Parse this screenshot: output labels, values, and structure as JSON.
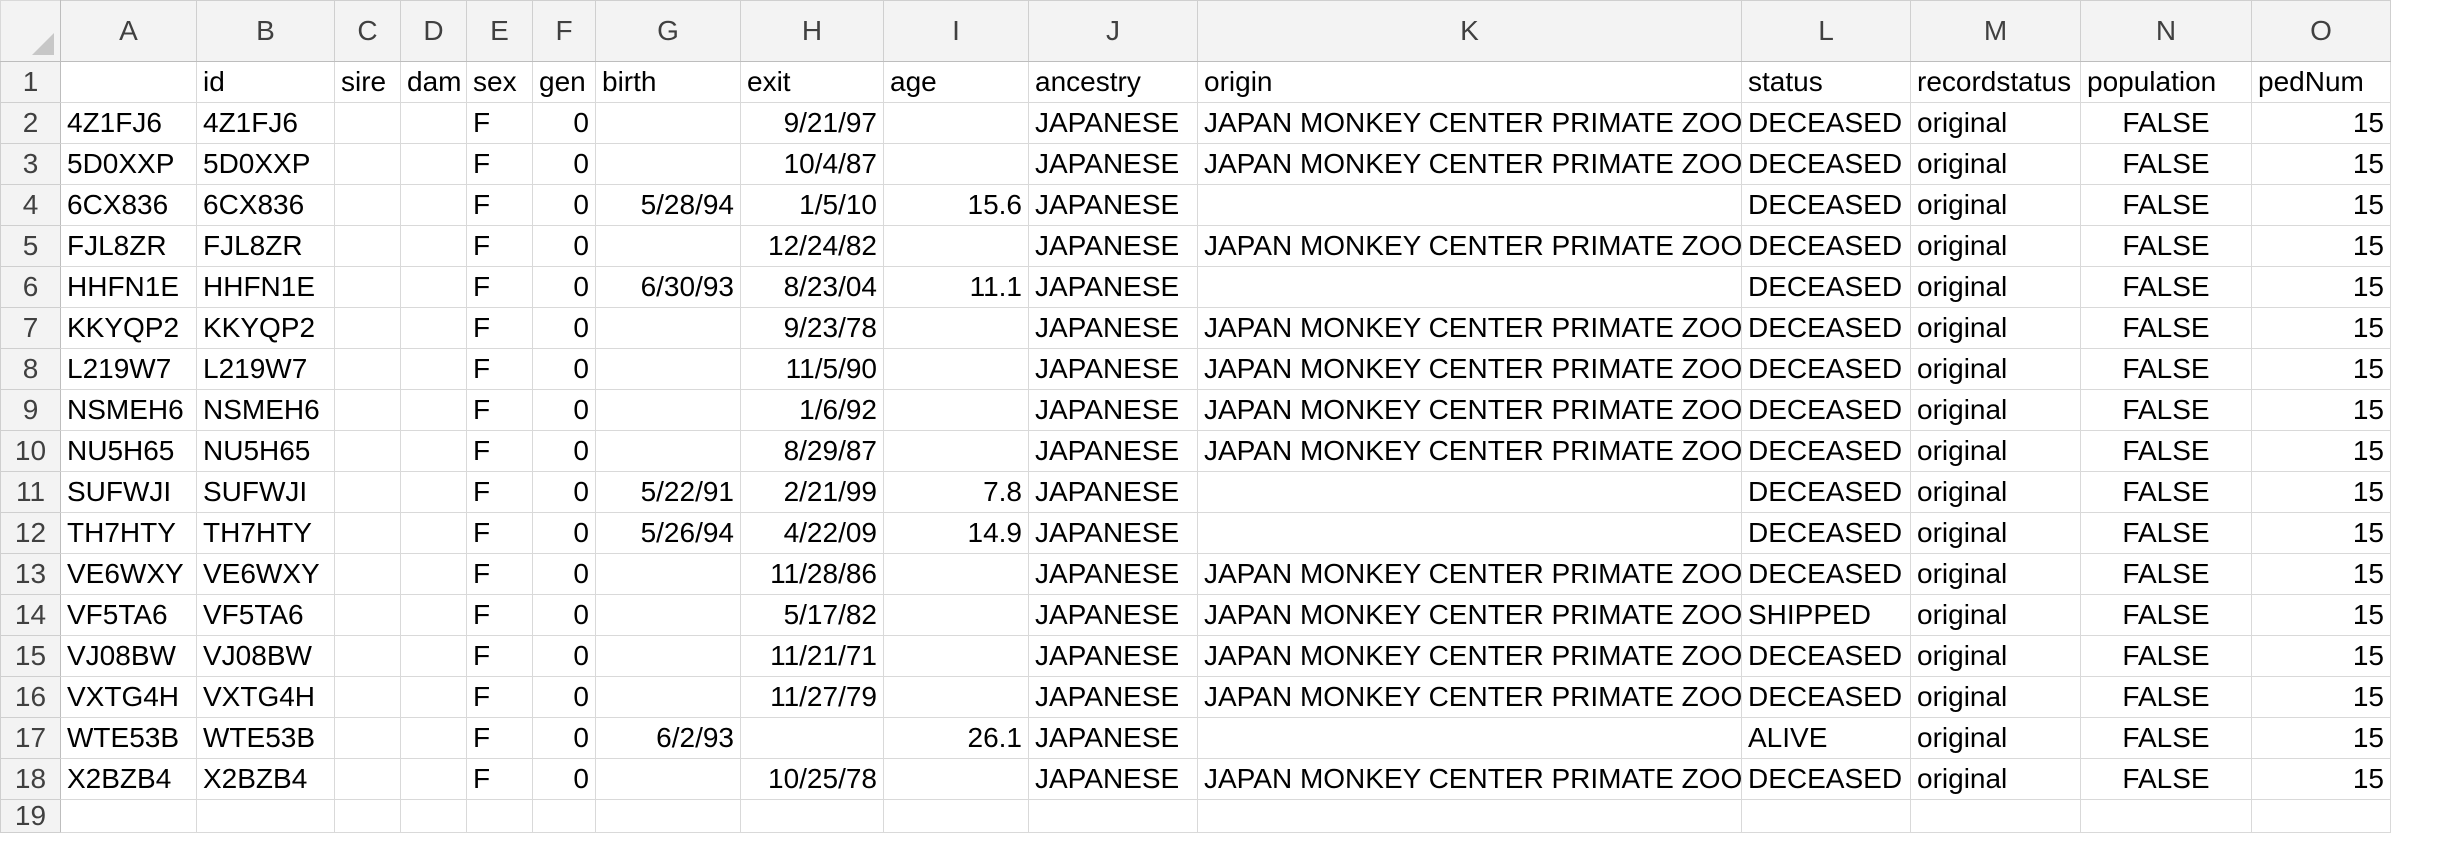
{
  "columns": [
    "A",
    "B",
    "C",
    "D",
    "E",
    "F",
    "G",
    "H",
    "I",
    "J",
    "K",
    "L",
    "M",
    "N",
    "O"
  ],
  "row_numbers": [
    "1",
    "2",
    "3",
    "4",
    "5",
    "6",
    "7",
    "8",
    "9",
    "10",
    "11",
    "12",
    "13",
    "14",
    "15",
    "16",
    "17",
    "18",
    "19"
  ],
  "header_row": [
    "",
    "id",
    "sire",
    "dam",
    "sex",
    "gen",
    "birth",
    "exit",
    "age",
    "ancestry",
    "origin",
    "status",
    "recordstatus",
    "population",
    "pedNum"
  ],
  "rows": [
    [
      "4Z1FJ6",
      "4Z1FJ6",
      "",
      "",
      "F",
      "0",
      "",
      "9/21/97",
      "",
      "JAPANESE",
      "JAPAN MONKEY CENTER PRIMATE ZOO",
      "DECEASED",
      "original",
      "FALSE",
      "15"
    ],
    [
      "5D0XXP",
      "5D0XXP",
      "",
      "",
      "F",
      "0",
      "",
      "10/4/87",
      "",
      "JAPANESE",
      "JAPAN MONKEY CENTER PRIMATE ZOO",
      "DECEASED",
      "original",
      "FALSE",
      "15"
    ],
    [
      "6CX836",
      "6CX836",
      "",
      "",
      "F",
      "0",
      "5/28/94",
      "1/5/10",
      "15.6",
      "JAPANESE",
      "",
      "DECEASED",
      "original",
      "FALSE",
      "15"
    ],
    [
      "FJL8ZR",
      "FJL8ZR",
      "",
      "",
      "F",
      "0",
      "",
      "12/24/82",
      "",
      "JAPANESE",
      "JAPAN MONKEY CENTER PRIMATE ZOO",
      "DECEASED",
      "original",
      "FALSE",
      "15"
    ],
    [
      "HHFN1E",
      "HHFN1E",
      "",
      "",
      "F",
      "0",
      "6/30/93",
      "8/23/04",
      "11.1",
      "JAPANESE",
      "",
      "DECEASED",
      "original",
      "FALSE",
      "15"
    ],
    [
      "KKYQP2",
      "KKYQP2",
      "",
      "",
      "F",
      "0",
      "",
      "9/23/78",
      "",
      "JAPANESE",
      "JAPAN MONKEY CENTER PRIMATE ZOO",
      "DECEASED",
      "original",
      "FALSE",
      "15"
    ],
    [
      "L219W7",
      "L219W7",
      "",
      "",
      "F",
      "0",
      "",
      "11/5/90",
      "",
      "JAPANESE",
      "JAPAN MONKEY CENTER PRIMATE ZOO",
      "DECEASED",
      "original",
      "FALSE",
      "15"
    ],
    [
      "NSMEH6",
      "NSMEH6",
      "",
      "",
      "F",
      "0",
      "",
      "1/6/92",
      "",
      "JAPANESE",
      "JAPAN MONKEY CENTER PRIMATE ZOO",
      "DECEASED",
      "original",
      "FALSE",
      "15"
    ],
    [
      "NU5H65",
      "NU5H65",
      "",
      "",
      "F",
      "0",
      "",
      "8/29/87",
      "",
      "JAPANESE",
      "JAPAN MONKEY CENTER PRIMATE ZOO",
      "DECEASED",
      "original",
      "FALSE",
      "15"
    ],
    [
      "SUFWJI",
      "SUFWJI",
      "",
      "",
      "F",
      "0",
      "5/22/91",
      "2/21/99",
      "7.8",
      "JAPANESE",
      "",
      "DECEASED",
      "original",
      "FALSE",
      "15"
    ],
    [
      "TH7HTY",
      "TH7HTY",
      "",
      "",
      "F",
      "0",
      "5/26/94",
      "4/22/09",
      "14.9",
      "JAPANESE",
      "",
      "DECEASED",
      "original",
      "FALSE",
      "15"
    ],
    [
      "VE6WXY",
      "VE6WXY",
      "",
      "",
      "F",
      "0",
      "",
      "11/28/86",
      "",
      "JAPANESE",
      "JAPAN MONKEY CENTER PRIMATE ZOO",
      "DECEASED",
      "original",
      "FALSE",
      "15"
    ],
    [
      "VF5TA6",
      "VF5TA6",
      "",
      "",
      "F",
      "0",
      "",
      "5/17/82",
      "",
      "JAPANESE",
      "JAPAN MONKEY CENTER PRIMATE ZOO",
      "SHIPPED",
      "original",
      "FALSE",
      "15"
    ],
    [
      "VJ08BW",
      "VJ08BW",
      "",
      "",
      "F",
      "0",
      "",
      "11/21/71",
      "",
      "JAPANESE",
      "JAPAN MONKEY CENTER PRIMATE ZOO",
      "DECEASED",
      "original",
      "FALSE",
      "15"
    ],
    [
      "VXTG4H",
      "VXTG4H",
      "",
      "",
      "F",
      "0",
      "",
      "11/27/79",
      "",
      "JAPANESE",
      "JAPAN MONKEY CENTER PRIMATE ZOO",
      "DECEASED",
      "original",
      "FALSE",
      "15"
    ],
    [
      "WTE53B",
      "WTE53B",
      "",
      "",
      "F",
      "0",
      "6/2/93",
      "",
      "26.1",
      "JAPANESE",
      "",
      "ALIVE",
      "original",
      "FALSE",
      "15"
    ],
    [
      "X2BZB4",
      "X2BZB4",
      "",
      "",
      "F",
      "0",
      "",
      "10/25/78",
      "",
      "JAPANESE",
      "JAPAN MONKEY CENTER PRIMATE ZOO",
      "DECEASED",
      "original",
      "FALSE",
      "15"
    ]
  ],
  "column_alignment": [
    "left",
    "left",
    "left",
    "left",
    "left",
    "right",
    "right",
    "right",
    "right",
    "left",
    "left",
    "left",
    "left",
    "center",
    "right"
  ]
}
